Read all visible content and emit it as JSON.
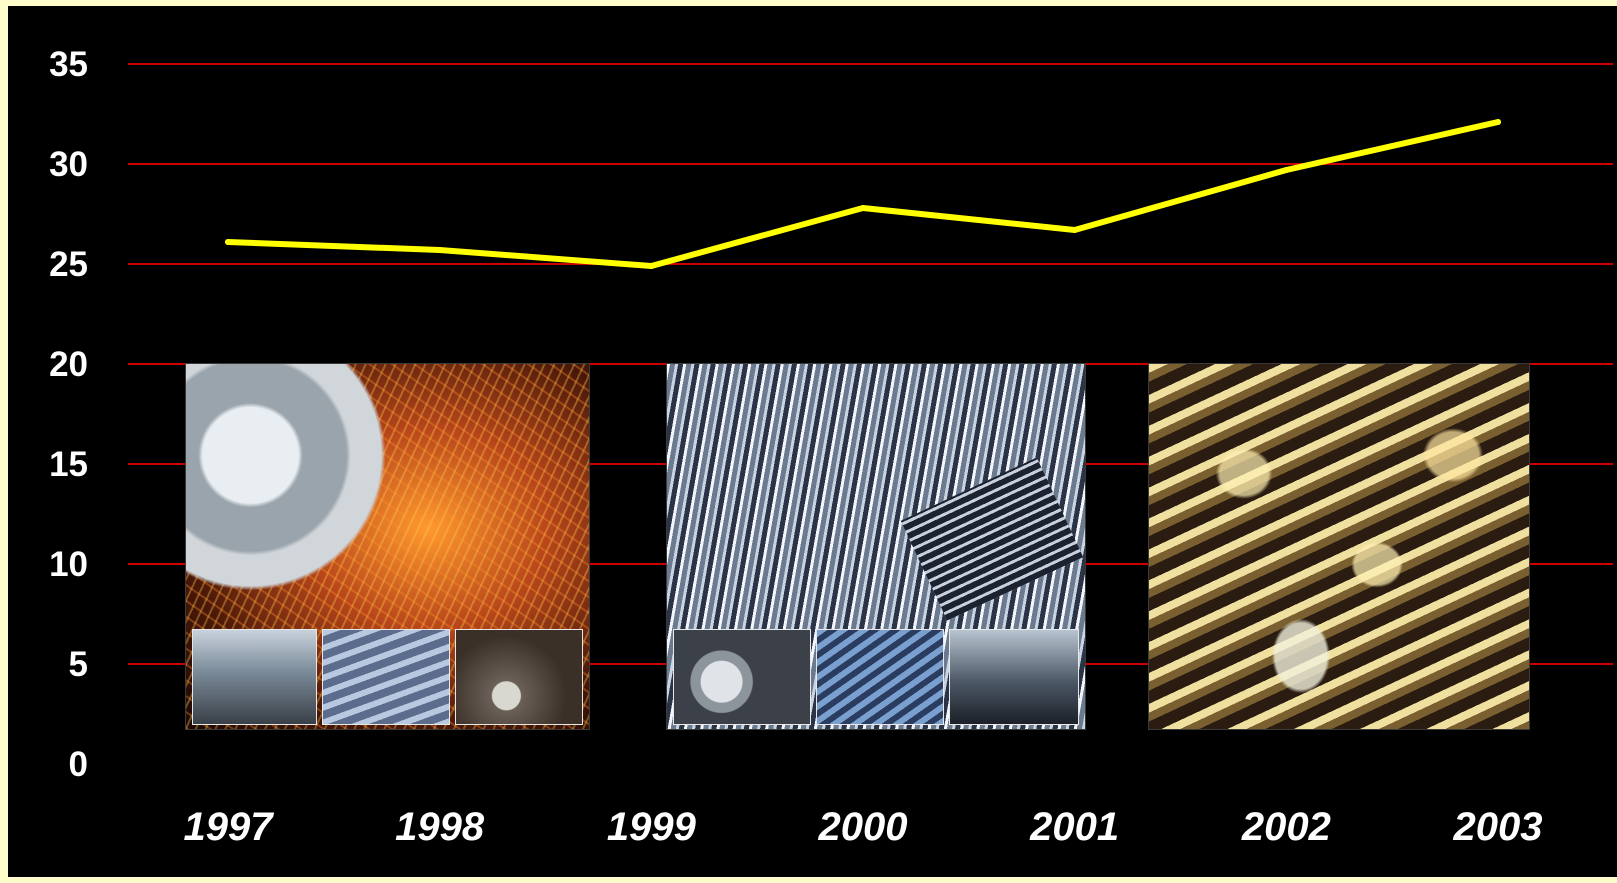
{
  "chart_data": {
    "type": "line",
    "title": "",
    "xlabel": "",
    "ylabel": "",
    "x": [
      "1997",
      "1998",
      "1999",
      "2000",
      "2001",
      "2002",
      "2003"
    ],
    "series": [
      {
        "values": [
          26.1,
          25.7,
          24.9,
          27.8,
          26.7,
          29.7,
          32.1
        ]
      }
    ],
    "ylim": [
      0,
      35
    ],
    "yticks": [
      "0",
      "5",
      "10",
      "15",
      "20",
      "25",
      "30",
      "35"
    ],
    "grid": true,
    "legend": "none",
    "colors": {
      "background": "#000000",
      "page": "#fffccc",
      "gridline": "#cc0000",
      "line": "#ffff00",
      "text": "#ffffff"
    }
  },
  "images": [
    {
      "name": "steel-coil-sparks-photo",
      "thumbs": [
        "warehouse-interior-thumb",
        "steel-sheets-thumb",
        "factory-machinery-thumb"
      ]
    },
    {
      "name": "steel-pipes-photo",
      "thumbs": [
        "coil-machine-thumb",
        "roll-forming-thumb",
        "coil-storage-thumb"
      ]
    },
    {
      "name": "steel-coils-warehouse-photo",
      "thumbs": []
    }
  ]
}
